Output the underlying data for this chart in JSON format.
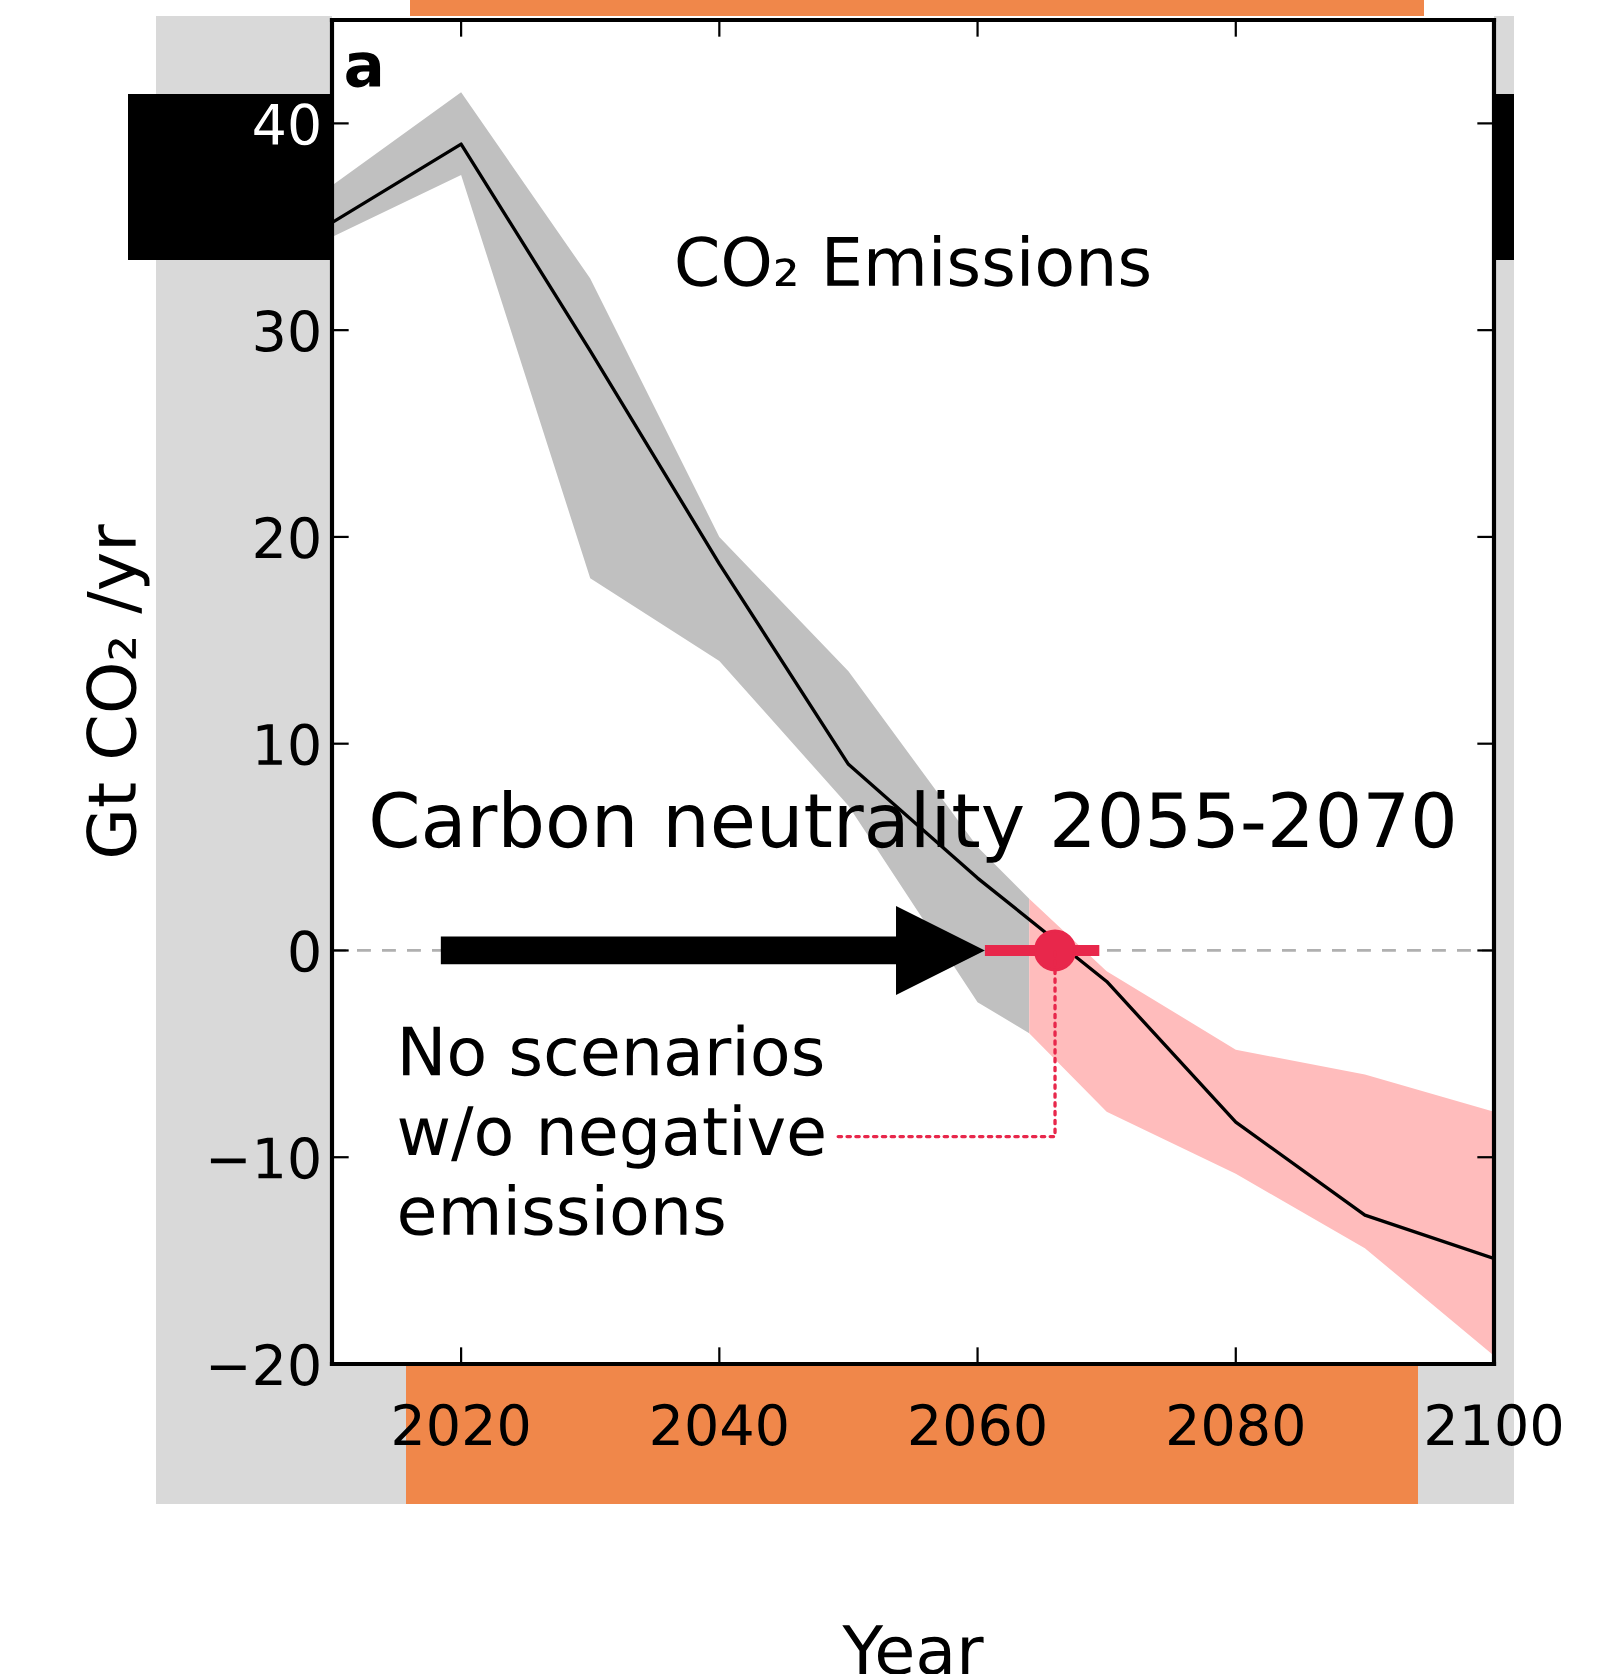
{
  "chart_data": {
    "type": "line",
    "xlabel": "Year",
    "ylabel": "Gt CO₂ /yr",
    "x": [
      2010,
      2020,
      2030,
      2040,
      2050,
      2060,
      2067,
      2070,
      2080,
      2090,
      2100
    ],
    "series": [
      {
        "color": "#c0c0c0",
        "x": [
          2010,
          2020,
          2030,
          2040,
          2050,
          2060,
          2064
        ],
        "values": [
          null,
          null,
          null,
          null,
          null,
          null,
          null
        ],
        "lower": [
          34.5,
          37.5,
          18,
          14,
          7,
          -2.5,
          -4
        ],
        "upper": [
          37,
          41.5,
          32.5,
          20,
          13.5,
          5,
          2.5
        ]
      },
      {
        "color": "#ffbcbc",
        "x": [
          2064,
          2070,
          2080,
          2090,
          2100
        ],
        "values": [
          null,
          null,
          null,
          null,
          null
        ],
        "lower": [
          -4,
          -7.8,
          -10.8,
          -14.4,
          -19.6
        ],
        "upper": [
          2.5,
          -1,
          -4.8,
          -6,
          -7.8
        ]
      },
      {
        "color": "#000000",
        "values": [
          35.2,
          39,
          29,
          18.7,
          9,
          3.5,
          0,
          -1.5,
          -8.3,
          -12.8,
          -14.9
        ]
      },
      {
        "color": "#e8274b",
        "x": [
          2061,
          2069
        ],
        "values": [
          0,
          0
        ]
      },
      {
        "type": "scatter",
        "color": "#e8274b",
        "x": [
          2066
        ],
        "values": [
          0
        ]
      }
    ],
    "xlim": [
      2010,
      2100
    ],
    "xticks": [
      2020,
      2040,
      2060,
      2080,
      2100
    ],
    "ylim": [
      -20,
      45
    ],
    "yticks": [
      {
        "value": -20,
        "label": "−20"
      },
      {
        "value": -10,
        "label": "−10"
      },
      0,
      10,
      20,
      30,
      40
    ],
    "ref_lines": [
      {
        "axis": "y",
        "value": 0,
        "color": "#b0b0b0",
        "line_style": "dashed"
      }
    ],
    "annotations": [
      "a",
      "CO₂ Emissions",
      {
        "text": "Carbon neutrality 2055-2070",
        "x": 2061,
        "y": 0
      },
      {
        "text": "No scenarios\nw/o negative\nemissions",
        "x": 2066,
        "y": 0
      }
    ],
    "grid": false
  }
}
